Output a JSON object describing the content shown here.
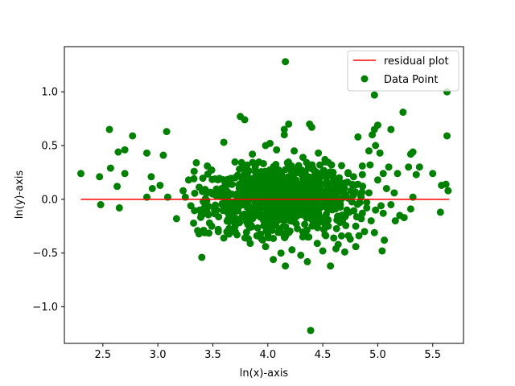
{
  "chart_data": {
    "type": "scatter",
    "title": "",
    "xlabel": "ln(x)-axis",
    "ylabel": "ln(y)-axis",
    "xlim": [
      2.15,
      5.78
    ],
    "ylim": [
      -1.34,
      1.42
    ],
    "xticks": [
      2.5,
      3.0,
      3.5,
      4.0,
      4.5,
      5.0,
      5.5
    ],
    "xtick_labels": [
      "2.5",
      "3.0",
      "3.5",
      "4.0",
      "4.5",
      "5.0",
      "5.5"
    ],
    "yticks": [
      -1.0,
      -0.5,
      0.0,
      0.5,
      1.0
    ],
    "ytick_labels": [
      "−1.0",
      "−0.5",
      "0.0",
      "0.5",
      "1.0"
    ],
    "grid": false,
    "legend_position": "top-right",
    "colors": {
      "points": "#008000",
      "line": "#ff0000"
    },
    "series": [
      {
        "name": "residual plot",
        "kind": "line",
        "x": [
          2.3,
          5.65
        ],
        "y": [
          0.0,
          0.0
        ]
      },
      {
        "name": "Data Point",
        "kind": "scatter",
        "points": [
          [
            4.16,
            1.28
          ],
          [
            4.39,
            -1.22
          ],
          [
            5.63,
            1.0
          ],
          [
            5.23,
            0.81
          ],
          [
            4.97,
            0.97
          ],
          [
            2.3,
            0.24
          ],
          [
            2.47,
            0.21
          ],
          [
            2.48,
            -0.05
          ],
          [
            2.56,
            0.65
          ],
          [
            2.57,
            0.29
          ],
          [
            2.63,
            0.12
          ],
          [
            2.64,
            0.44
          ],
          [
            2.65,
            -0.08
          ],
          [
            2.7,
            0.46
          ],
          [
            2.7,
            0.24
          ],
          [
            2.77,
            0.59
          ],
          [
            2.9,
            0.43
          ],
          [
            2.9,
            0.02
          ],
          [
            2.94,
            0.21
          ],
          [
            2.95,
            0.1
          ],
          [
            3.02,
            0.13
          ],
          [
            3.05,
            0.41
          ],
          [
            3.08,
            0.63
          ],
          [
            3.09,
            0.02
          ],
          [
            3.17,
            -0.18
          ],
          [
            3.4,
            -0.54
          ],
          [
            3.6,
            0.53
          ],
          [
            3.75,
            0.77
          ],
          [
            3.79,
            0.74
          ],
          [
            4.15,
            0.6
          ],
          [
            4.15,
            0.65
          ],
          [
            4.19,
            0.7
          ],
          [
            4.38,
            0.7
          ],
          [
            4.4,
            0.67
          ],
          [
            4.05,
            -0.56
          ],
          [
            4.16,
            -0.62
          ],
          [
            4.36,
            -0.58
          ],
          [
            4.57,
            -0.62
          ],
          [
            4.82,
            0.58
          ],
          [
            4.95,
            0.6
          ],
          [
            4.97,
            0.65
          ],
          [
            5.0,
            0.69
          ],
          [
            5.12,
            0.65
          ],
          [
            5.63,
            0.59
          ],
          [
            5.3,
            0.42
          ],
          [
            5.32,
            0.44
          ],
          [
            5.58,
            0.13
          ],
          [
            5.62,
            0.14
          ],
          [
            5.64,
            0.08
          ],
          [
            5.57,
            -0.12
          ],
          [
            5.5,
            0.24
          ],
          [
            5.38,
            0.3
          ],
          [
            5.35,
            0.23
          ],
          [
            5.28,
            0.3
          ],
          [
            5.32,
            0.02
          ],
          [
            5.15,
            0.06
          ],
          [
            5.1,
            0.3
          ],
          [
            5.05,
            0.24
          ],
          [
            5.03,
            -0.06
          ],
          [
            5.05,
            -0.13
          ],
          [
            5.06,
            -0.38
          ],
          [
            5.04,
            -0.48
          ],
          [
            4.97,
            -0.31
          ],
          [
            4.88,
            -0.3
          ],
          [
            4.8,
            -0.44
          ],
          [
            4.7,
            -0.49
          ],
          [
            4.64,
            -0.42
          ],
          [
            4.6,
            -0.36
          ],
          [
            4.55,
            -0.25
          ],
          [
            4.5,
            -0.48
          ],
          [
            4.45,
            -0.41
          ],
          [
            4.3,
            -0.52
          ],
          [
            4.22,
            -0.47
          ],
          [
            4.12,
            -0.5
          ],
          [
            3.98,
            -0.44
          ],
          [
            3.84,
            -0.41
          ],
          [
            3.72,
            -0.33
          ],
          [
            3.6,
            -0.36
          ],
          [
            3.55,
            -0.3
          ],
          [
            3.47,
            -0.22
          ],
          [
            3.38,
            -0.1
          ],
          [
            3.3,
            -0.06
          ],
          [
            3.25,
            0.02
          ],
          [
            3.23,
            0.08
          ],
          [
            3.28,
            0.18
          ],
          [
            3.33,
            0.26
          ],
          [
            3.35,
            0.34
          ],
          [
            3.45,
            0.31
          ],
          [
            3.52,
            0.19
          ],
          [
            3.58,
            0.1
          ],
          [
            3.86,
            0.42
          ],
          [
            3.98,
            0.5
          ],
          [
            4.02,
            0.52
          ],
          [
            4.08,
            0.46
          ],
          [
            4.24,
            0.45
          ],
          [
            4.32,
            0.39
          ],
          [
            4.46,
            0.43
          ],
          [
            4.52,
            0.37
          ],
          [
            4.58,
            0.32
          ],
          [
            4.65,
            0.2
          ],
          [
            4.73,
            0.24
          ],
          [
            4.78,
            0.21
          ],
          [
            4.86,
            0.23
          ],
          [
            4.92,
            0.45
          ],
          [
            4.98,
            0.5
          ],
          [
            5.02,
            0.43
          ],
          [
            4.93,
            0.32
          ],
          [
            4.86,
            0.31
          ],
          [
            4.82,
            0.14
          ],
          [
            4.76,
            0.08
          ],
          [
            4.7,
            0.15
          ],
          [
            4.66,
            -0.05
          ],
          [
            4.74,
            -0.12
          ],
          [
            4.8,
            -0.25
          ],
          [
            4.85,
            -0.18
          ],
          [
            4.9,
            -0.08
          ],
          [
            4.94,
            -0.2
          ],
          [
            4.98,
            -0.1
          ],
          [
            4.92,
            0.06
          ],
          [
            5.0,
            0.18
          ],
          [
            5.08,
            0.1
          ],
          [
            5.12,
            -0.05
          ],
          [
            5.16,
            -0.2
          ],
          [
            5.2,
            -0.15
          ],
          [
            5.24,
            -0.17
          ],
          [
            5.3,
            -0.09
          ],
          [
            5.18,
            0.24
          ],
          [
            4.75,
            -0.37
          ],
          [
            4.62,
            -0.46
          ],
          [
            4.52,
            -0.33
          ]
        ]
      }
    ]
  }
}
